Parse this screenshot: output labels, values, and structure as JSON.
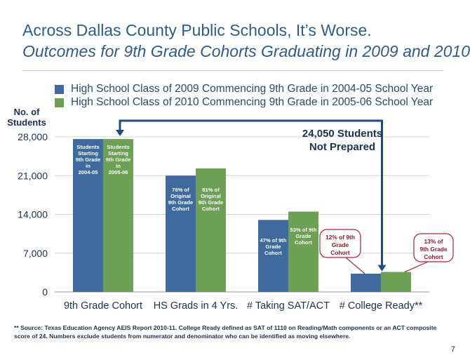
{
  "title": "Across Dallas County Public Schools, It’s Worse.",
  "subtitle": "Outcomes for 9th Grade Cohorts Graduating in 2009 and 2010",
  "ylabel_line1": "No. of",
  "ylabel_line2": "Students",
  "legend": [
    {
      "label": "High School Class of 2009 Commencing 9th Grade in 2004-05 School Year",
      "color": "#3e6a9e"
    },
    {
      "label": "High School Class of 2010 Commencing 9th Grade in 2005-06 School Year",
      "color": "#6d9f54"
    }
  ],
  "callout_line1": "24,050 Students",
  "callout_line2": "Not Prepared",
  "source_note": "** Source: Texas Education Agency AEIS Report 2010-11. College Ready defined as SAT of 1110 on Reading/Math components or an ACT composite score of 24. Numbers exclude students from numerator and denominator who can be identified as moving elsewhere.",
  "page_number": "7",
  "colors": {
    "series2009": "#3e6a9e",
    "series2010": "#6d9f54",
    "arrow": "#1f4a86",
    "callout_border": "#b22234",
    "callout_text": "#8b1a2b"
  },
  "chart_data": {
    "type": "bar",
    "categories": [
      "9th Grade Cohort",
      "HS Grads in 4 Yrs.",
      "# Taking SAT/ACT",
      "# College Ready**"
    ],
    "series": [
      {
        "name": "High School Class of 2009 Commencing 9th Grade in 2004-05 School Year",
        "values": [
          27600,
          21000,
          13000,
          3300
        ]
      },
      {
        "name": "High School Class of 2010 Commencing 9th Grade in 2005-06 School Year",
        "values": [
          27600,
          22300,
          14500,
          3600
        ]
      }
    ],
    "ylim": [
      0,
      28000
    ],
    "yticks": [
      0,
      7000,
      14000,
      21000,
      28000
    ],
    "ytick_labels": [
      "0",
      "7,000",
      "14,000",
      "21,000",
      "28,000"
    ],
    "grid": true,
    "legend_position": "top",
    "bar_labels": [
      [
        "Students Starting 9th Grade in 2004-05",
        "Students Starting 9th Grade in 2005-06"
      ],
      [
        "76% of Original 9th Grade Cohort",
        "81% of Original 9th Grade Cohort"
      ],
      [
        "47% of 9th Grade Cohort",
        "53% of 9th Grade Cohort"
      ],
      [
        "12% of 9th Grade Cohort",
        "13% of 9th Grade Cohort"
      ]
    ]
  }
}
